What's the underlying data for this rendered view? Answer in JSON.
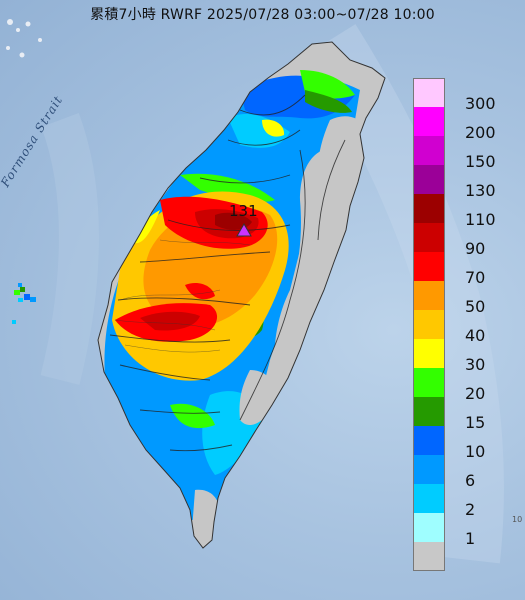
{
  "title": "累積7小時 RWRF 2025/07/28 03:00~07/28 10:00",
  "strait_label": "Formosa Strait",
  "max_value_label": "131",
  "edge_mark": "10",
  "legend": {
    "levels": [
      {
        "label": "300",
        "color": "#ffc8ff"
      },
      {
        "label": "200",
        "color": "#ff00ff"
      },
      {
        "label": "150",
        "color": "#d000d0"
      },
      {
        "label": "130",
        "color": "#9b0098"
      },
      {
        "label": "110",
        "color": "#9c0000"
      },
      {
        "label": "90",
        "color": "#cc0000"
      },
      {
        "label": "70",
        "color": "#ff0000"
      },
      {
        "label": "50",
        "color": "#ff9900"
      },
      {
        "label": "40",
        "color": "#ffc800"
      },
      {
        "label": "30",
        "color": "#ffff00"
      },
      {
        "label": "20",
        "color": "#33ff00"
      },
      {
        "label": "15",
        "color": "#259a00"
      },
      {
        "label": "10",
        "color": "#0066ff"
      },
      {
        "label": "6",
        "color": "#0099ff"
      },
      {
        "label": "2",
        "color": "#00ccff"
      },
      {
        "label": "1",
        "color": "#9ffeff"
      },
      {
        "label": "",
        "color": "#c8c8c8"
      }
    ]
  },
  "colors": {
    "no_rain": "#c6c6c6",
    "max_marker": "#cc33ff",
    "land_outline": "#333333"
  }
}
